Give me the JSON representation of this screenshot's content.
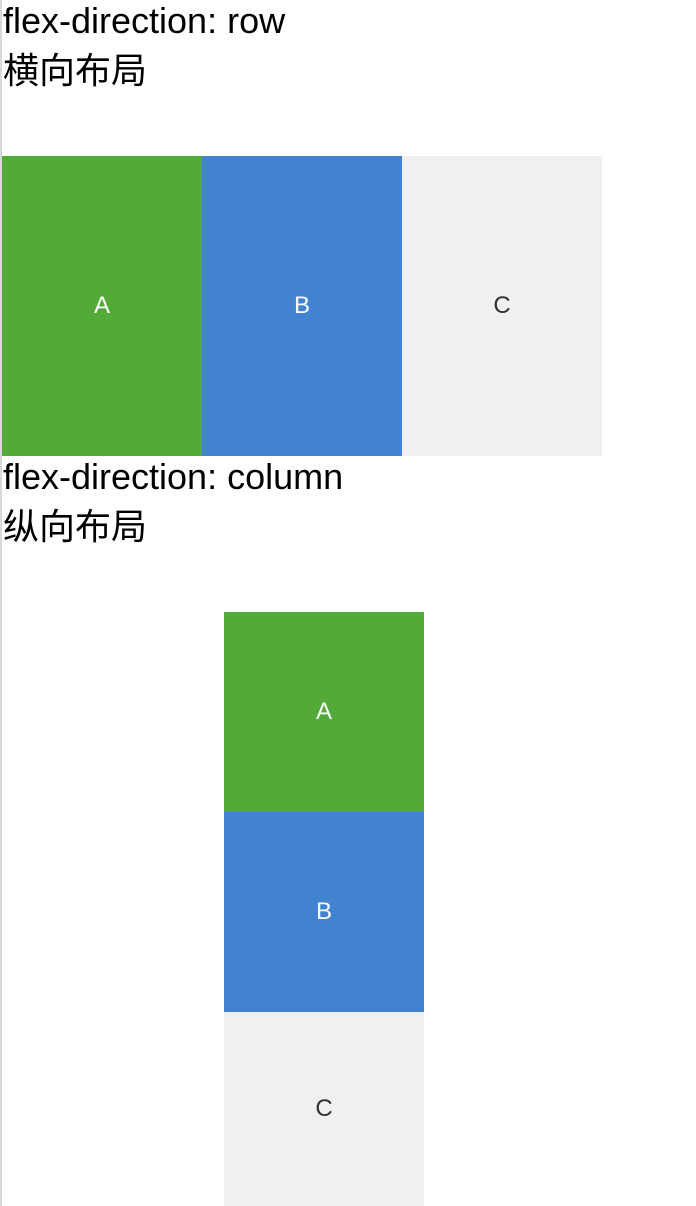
{
  "colors": {
    "green": "#53aa39",
    "blue": "#4283d1",
    "gray": "#f0f0f0",
    "text_light": "#ffffff",
    "text_dark": "#333333"
  },
  "row_section": {
    "title": "flex-direction: row",
    "subtitle": "横向布局",
    "items": [
      {
        "label": "A"
      },
      {
        "label": "B"
      },
      {
        "label": "C"
      }
    ]
  },
  "column_section": {
    "title": "flex-direction: column",
    "subtitle": "纵向布局",
    "items": [
      {
        "label": "A"
      },
      {
        "label": "B"
      },
      {
        "label": "C"
      }
    ]
  }
}
